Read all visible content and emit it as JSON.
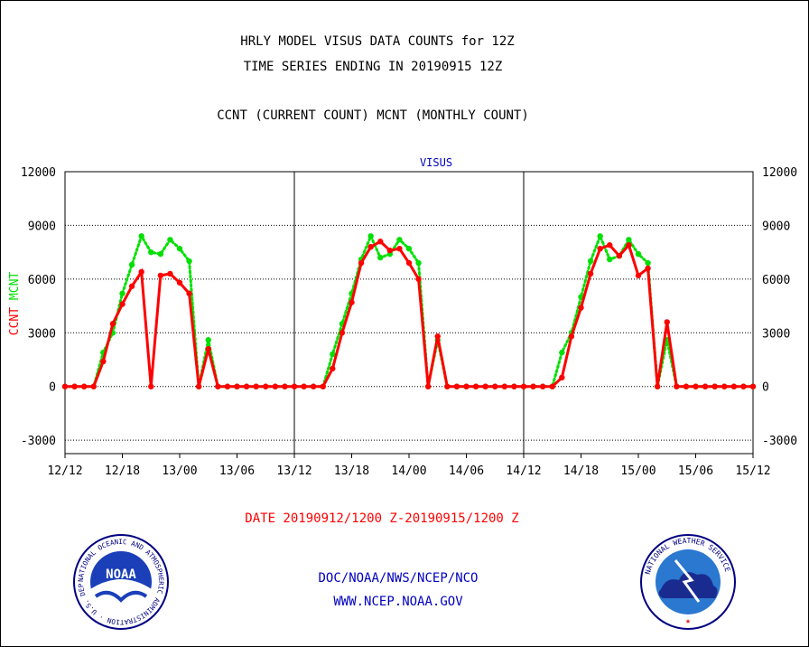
{
  "header": {
    "line1": "HRLY MODEL VISUS DATA COUNTS for 12Z",
    "line2": "TIME SERIES ENDING IN 20190915 12Z",
    "line3": "CCNT (CURRENT COUNT) MCNT (MONTHLY COUNT)"
  },
  "footer": {
    "date_range": "DATE 20190912/1200 Z-20190915/1200 Z",
    "org": "DOC/NOAA/NWS/NCEP/NCO",
    "url": "WWW.NCEP.NOAA.GOV"
  },
  "logos": {
    "noaa": {
      "center_text": "NOAA",
      "ring_text": "NATIONAL OCEANIC AND ATMOSPHERIC ADMINISTRATION · U.S. DEPARTMENT OF COMMERCE"
    },
    "nws": {
      "ring_text": "NATIONAL WEATHER SERVICE"
    }
  },
  "colors": {
    "ccnt": "#ff0000",
    "mcnt": "#00e000",
    "title_blue": "#0000c0",
    "date_red": "#ff0000"
  },
  "chart_data": {
    "type": "line",
    "title": "VISUS",
    "ylabel_parts": [
      {
        "text": "CCNT",
        "color": "#ff0000"
      },
      {
        "text": "MCNT",
        "color": "#00e000"
      }
    ],
    "ylim": [
      -3750,
      12000
    ],
    "yticks": [
      -3000,
      0,
      3000,
      6000,
      9000,
      12000
    ],
    "ytick_labels": [
      "-3000",
      "0",
      "3000",
      "6000",
      "9000",
      "12000"
    ],
    "x_unit": "hours from 12/12 12Z",
    "xlim": [
      0,
      72
    ],
    "xticks": [
      0,
      6,
      12,
      18,
      24,
      30,
      36,
      42,
      48,
      54,
      60,
      66,
      72
    ],
    "xtick_labels": [
      "12/12",
      "12/18",
      "13/00",
      "13/06",
      "13/12",
      "13/18",
      "14/00",
      "14/06",
      "14/12",
      "14/18",
      "15/00",
      "15/06",
      "15/12"
    ],
    "day_separators": [
      24,
      48
    ],
    "grid": "horizontal dotted",
    "series": [
      {
        "name": "CCNT",
        "color": "#ff0000",
        "style": "solid",
        "values": [
          0,
          0,
          0,
          0,
          1400,
          3500,
          4600,
          5600,
          6400,
          0,
          6200,
          6300,
          5800,
          5200,
          0,
          2100,
          0,
          0,
          0,
          0,
          0,
          0,
          0,
          0,
          0,
          0,
          0,
          0,
          1000,
          3000,
          4700,
          6900,
          7800,
          8100,
          7600,
          7700,
          6900,
          6000,
          0,
          2800,
          0,
          0,
          0,
          0,
          0,
          0,
          0,
          0,
          0,
          0,
          0,
          0,
          500,
          2800,
          4400,
          6300,
          7700,
          7900,
          7300,
          7900,
          6200,
          6600,
          0,
          3600,
          0,
          0,
          0,
          0,
          0,
          0,
          0,
          0,
          0
        ]
      },
      {
        "name": "MCNT",
        "color": "#00e000",
        "style": "dotted",
        "values": [
          0,
          0,
          0,
          0,
          1900,
          3000,
          5200,
          6800,
          8400,
          7500,
          7400,
          8200,
          7700,
          7000,
          0,
          2600,
          0,
          0,
          0,
          0,
          0,
          0,
          0,
          0,
          0,
          0,
          0,
          0,
          1800,
          3500,
          5200,
          7100,
          8400,
          7200,
          7400,
          8200,
          7700,
          6900,
          0,
          2600,
          0,
          0,
          0,
          0,
          0,
          0,
          0,
          0,
          0,
          0,
          0,
          0,
          1900,
          3000,
          5000,
          7000,
          8400,
          7100,
          7300,
          8200,
          7400,
          6900,
          0,
          2600,
          0,
          0,
          0,
          0,
          0,
          0,
          0,
          0,
          0
        ]
      }
    ]
  }
}
